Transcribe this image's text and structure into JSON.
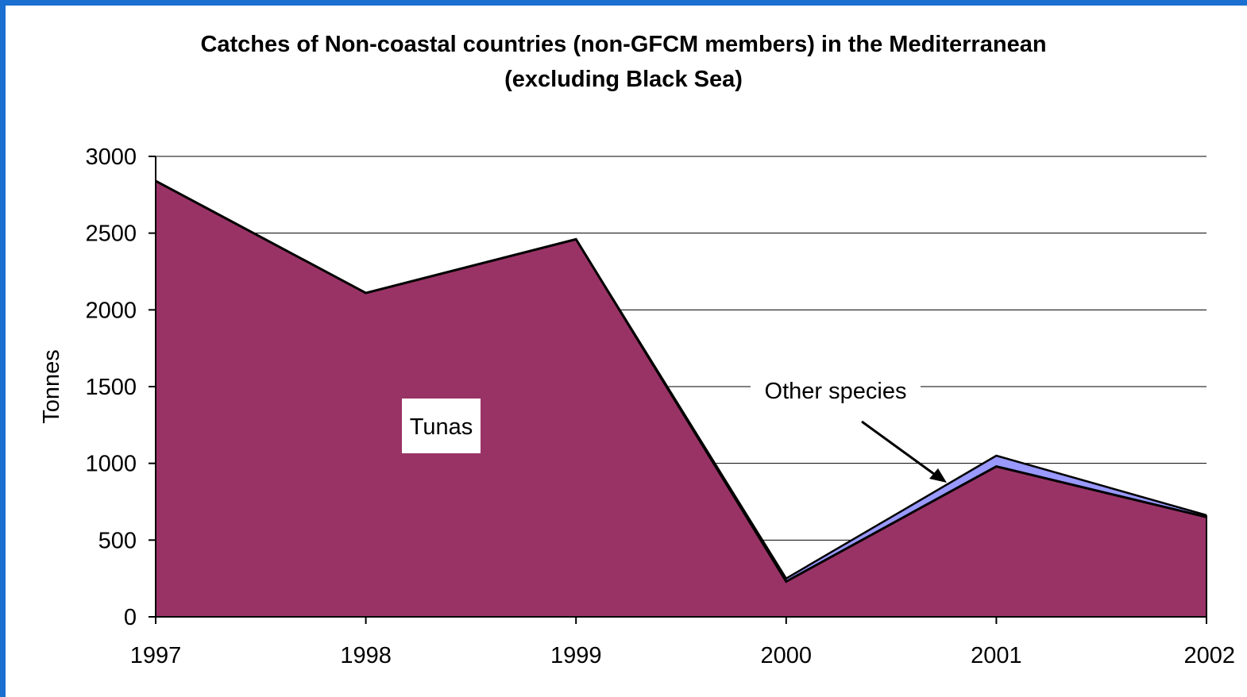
{
  "chart_data": {
    "type": "area",
    "stacked": true,
    "title": "Catches of Non-coastal countries (non-GFCM members) in the Mediterranean",
    "subtitle": "(excluding Black Sea)",
    "xlabel": "",
    "ylabel": "Tonnes",
    "categories": [
      "1997",
      "1998",
      "1999",
      "2000",
      "2001",
      "2002"
    ],
    "series": [
      {
        "name": "Tunas",
        "values": [
          2840,
          2110,
          2460,
          230,
          980,
          650
        ],
        "color": "#993366"
      },
      {
        "name": "Other species",
        "values": [
          0,
          0,
          0,
          20,
          70,
          12
        ],
        "color": "#9999ff"
      }
    ],
    "ylim": [
      0,
      3000
    ],
    "yticks": [
      0,
      500,
      1000,
      1500,
      2000,
      2500,
      3000
    ],
    "grid": true,
    "legend": "none (series labelled inline)",
    "annotations": [
      {
        "text": "Tunas",
        "series": "Tunas",
        "style": "label-box"
      },
      {
        "text": "Other species",
        "series": "Other species",
        "style": "label-with-arrow"
      }
    ]
  },
  "colors": {
    "border": "#1a6fd0",
    "background": "#ffffff",
    "outline": "#000000"
  }
}
